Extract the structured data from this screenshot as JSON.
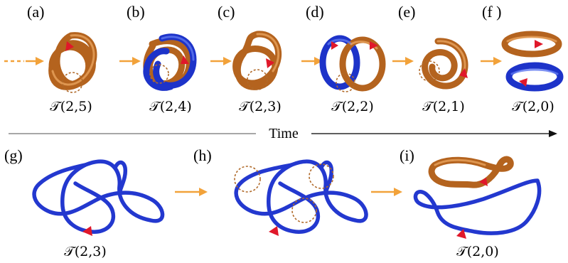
{
  "panels": [
    {
      "id": "a",
      "label": "(a)",
      "knot": "𝒯(2,5)"
    },
    {
      "id": "b",
      "label": "(b)",
      "knot": "𝒯(2,4)"
    },
    {
      "id": "c",
      "label": "(c)",
      "knot": "𝒯(2,3)"
    },
    {
      "id": "d",
      "label": "(d)",
      "knot": "𝒯(2,2)"
    },
    {
      "id": "e",
      "label": "(e)",
      "knot": "𝒯(2,1)"
    },
    {
      "id": "f",
      "label": "(f )",
      "knot": "𝒯(2,0)"
    },
    {
      "id": "g",
      "label": "(g)",
      "knot": "𝒯(2,3)"
    },
    {
      "id": "h",
      "label": "(h)",
      "knot": ""
    },
    {
      "id": "i",
      "label": "(i)",
      "knot": "𝒯(2,0)"
    }
  ],
  "timeline": {
    "label": "Time"
  },
  "colors": {
    "orange_tube": "#b4631e",
    "blue_tube": "#1d33c9",
    "arrow": "#f2a23a",
    "direction_marker": "#e0182a"
  }
}
